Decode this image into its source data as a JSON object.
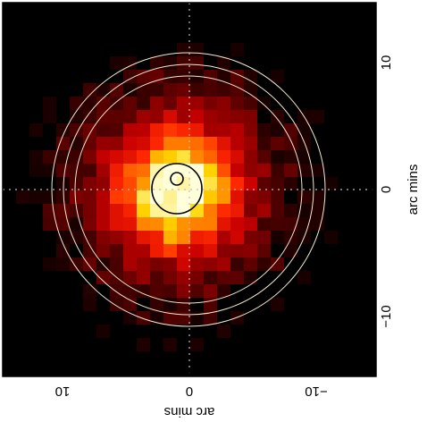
{
  "image": {
    "kind": "X-ray count map (radial profile extraction regions)",
    "colormap": "black-red-yellow-white heat",
    "colors": {
      "background": "#000000",
      "frame": "#000000",
      "outer_rings": "#f2ead2",
      "inner_rings": "#000000",
      "guide_lines": "#bdbdbd"
    }
  },
  "axes": {
    "right": {
      "label": "arc mins",
      "ticks": [
        "10",
        "0",
        "−10"
      ]
    },
    "bottom": {
      "label": "arc mins",
      "ticks": [
        "10",
        "0",
        "−10"
      ]
    }
  }
}
